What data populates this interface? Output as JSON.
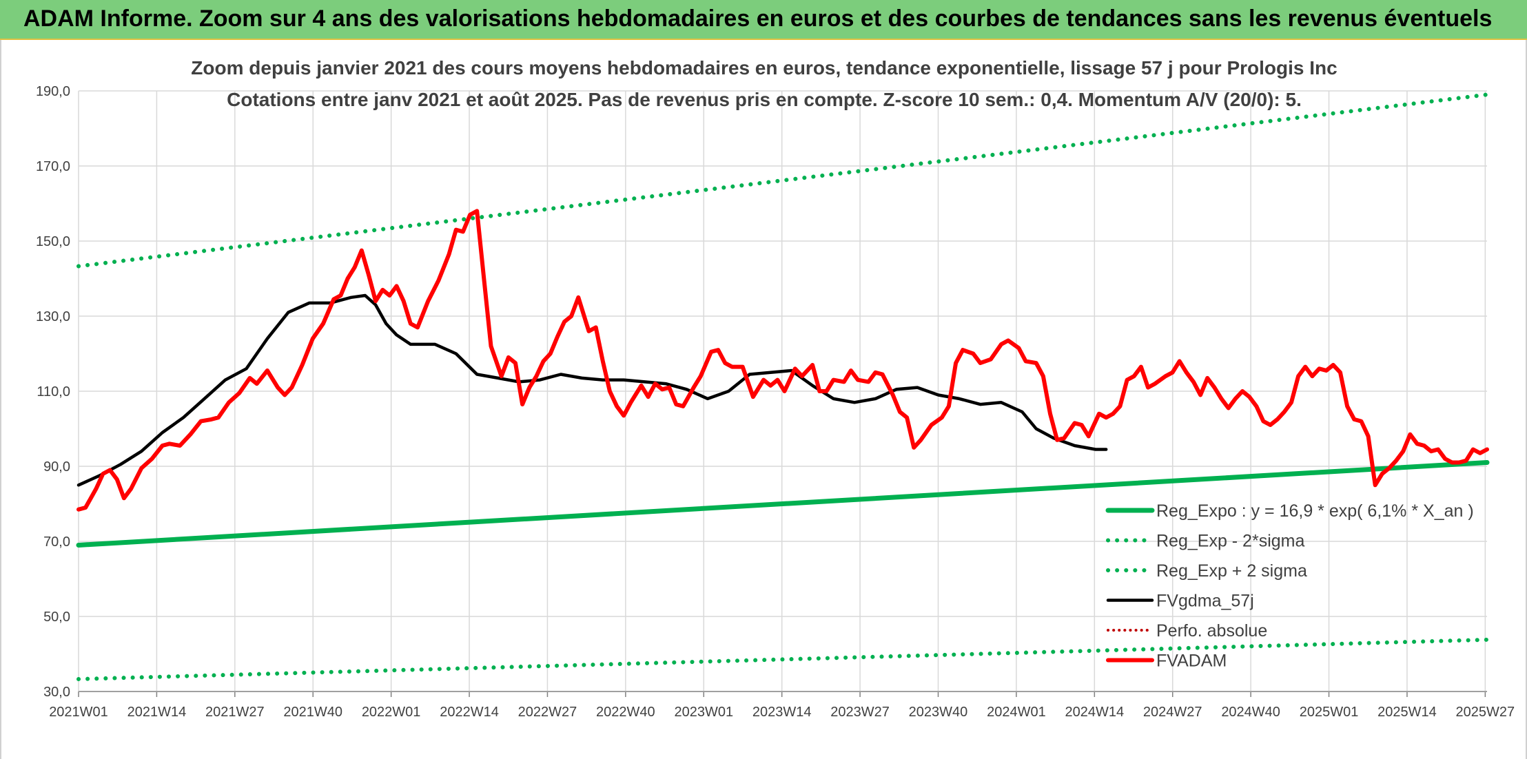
{
  "banner": {
    "title": "ADAM Informe. Zoom sur 4 ans des valorisations hebdomadaires en euros et des courbes de tendances sans les revenus éventuels"
  },
  "colors": {
    "trend": "#00b050",
    "fvgdma": "#000000",
    "fvadam": "#ff0000",
    "perfo": "#c00000",
    "grid": "#d9d9d9",
    "text": "#404040"
  },
  "chart_data": {
    "type": "line",
    "title": "Zoom depuis janvier 2021 des cours moyens hebdomadaires en euros, tendance exponentielle, lissage 57 j pour Prologis Inc",
    "subtitle": "Cotations entre janv 2021 et août 2025. Pas de revenus pris en compte. Z-score 10 sem.: 0,4. Momentum A/V (20/0): 5.",
    "xlabel": "",
    "ylabel": "",
    "ylim": [
      30,
      190
    ],
    "y_ticks": [
      "30,0",
      "50,0",
      "70,0",
      "90,0",
      "110,0",
      "130,0",
      "150,0",
      "170,0",
      "190,0"
    ],
    "x_ticks": [
      "2021W01",
      "2021W14",
      "2021W27",
      "2021W40",
      "2022W01",
      "2022W14",
      "2022W27",
      "2022W40",
      "2023W01",
      "2023W14",
      "2023W27",
      "2023W40",
      "2024W01",
      "2024W14",
      "2024W27",
      "2024W40",
      "2025W01",
      "2025W14",
      "2025W27"
    ],
    "week_range": [
      0,
      239
    ],
    "grid": true,
    "legend_position": "bottom-right",
    "series": [
      {
        "name": "Reg_Expo : y = 16,9 * exp( 6,1% *  X_an )",
        "style": "solid-thick",
        "color": "#00b050",
        "points": [
          [
            0,
            69.0
          ],
          [
            239,
            91.0
          ]
        ]
      },
      {
        "name": "Reg_Exp - 2*sigma",
        "style": "dotted",
        "color": "#00b050",
        "points": [
          [
            0,
            33.3
          ],
          [
            239,
            43.8
          ]
        ]
      },
      {
        "name": "Reg_Exp + 2 sigma",
        "style": "dotted",
        "color": "#00b050",
        "points": [
          [
            0,
            143.3
          ],
          [
            239,
            189.0
          ]
        ]
      },
      {
        "name": "FVgdma_57j",
        "style": "solid",
        "color": "#000000",
        "points": [
          [
            0,
            85.0
          ],
          [
            6,
            87.5
          ],
          [
            12,
            90.5
          ],
          [
            18,
            94.0
          ],
          [
            24,
            99.0
          ],
          [
            30,
            103.0
          ],
          [
            36,
            108.0
          ],
          [
            42,
            113.0
          ],
          [
            48,
            116.0
          ],
          [
            54,
            124.0
          ],
          [
            60,
            131.0
          ],
          [
            66,
            133.5
          ],
          [
            72,
            133.5
          ],
          [
            78,
            135.0
          ],
          [
            82,
            135.5
          ],
          [
            85,
            133.0
          ],
          [
            88,
            128.0
          ],
          [
            91,
            125.0
          ],
          [
            95,
            122.5
          ],
          [
            102,
            122.5
          ],
          [
            108,
            120.0
          ],
          [
            114,
            114.5
          ],
          [
            120,
            113.5
          ],
          [
            126,
            112.5
          ],
          [
            132,
            113.0
          ],
          [
            138,
            114.5
          ],
          [
            144,
            113.5
          ],
          [
            150,
            113.0
          ],
          [
            156,
            113.0
          ],
          [
            162,
            112.5
          ],
          [
            168,
            112.0
          ],
          [
            174,
            110.5
          ],
          [
            180,
            108.0
          ],
          [
            186,
            110.0
          ],
          [
            192,
            114.5
          ],
          [
            198,
            115.0
          ],
          [
            204,
            115.5
          ],
          [
            210,
            111.5
          ],
          [
            216,
            108.0
          ],
          [
            222,
            107.0
          ],
          [
            228,
            108.0
          ],
          [
            234,
            110.5
          ],
          [
            240,
            111.0
          ],
          [
            246,
            109.0
          ],
          [
            252,
            108.0
          ],
          [
            258,
            106.5
          ],
          [
            264,
            107.0
          ],
          [
            270,
            104.5
          ],
          [
            274,
            100.0
          ],
          [
            279,
            97.5
          ],
          [
            285,
            95.5
          ],
          [
            291,
            94.5
          ],
          [
            294,
            94.5
          ]
        ]
      },
      {
        "name": "Perfo. absolue",
        "style": "dotted-thin",
        "color": "#c00000",
        "points": []
      },
      {
        "name": "FVADAM",
        "style": "solid-thick",
        "color": "#ff0000",
        "points": [
          [
            0,
            78.5
          ],
          [
            2,
            79.0
          ],
          [
            5,
            84.0
          ],
          [
            7,
            88.0
          ],
          [
            9,
            89.0
          ],
          [
            11,
            86.5
          ],
          [
            13,
            81.5
          ],
          [
            15,
            84.0
          ],
          [
            18,
            89.5
          ],
          [
            21,
            92.0
          ],
          [
            24,
            95.5
          ],
          [
            26,
            96.0
          ],
          [
            29,
            95.5
          ],
          [
            32,
            98.5
          ],
          [
            35,
            102.0
          ],
          [
            38,
            102.5
          ],
          [
            40,
            103.0
          ],
          [
            43,
            107.0
          ],
          [
            46,
            109.5
          ],
          [
            49,
            113.5
          ],
          [
            51,
            112.0
          ],
          [
            54,
            115.5
          ],
          [
            57,
            111.0
          ],
          [
            59,
            109.0
          ],
          [
            61,
            111.0
          ],
          [
            64,
            117.0
          ],
          [
            67,
            124.0
          ],
          [
            70,
            128.0
          ],
          [
            73,
            134.5
          ],
          [
            75,
            135.5
          ],
          [
            77,
            140.0
          ],
          [
            79,
            143.0
          ],
          [
            81,
            147.5
          ],
          [
            83,
            141.0
          ],
          [
            85,
            134.0
          ],
          [
            87,
            137.0
          ],
          [
            89,
            135.5
          ],
          [
            91,
            138.0
          ],
          [
            93,
            134.0
          ],
          [
            95,
            128.0
          ],
          [
            97,
            127.0
          ],
          [
            100,
            134.0
          ],
          [
            103,
            139.5
          ],
          [
            106,
            146.5
          ],
          [
            108,
            153.0
          ],
          [
            110,
            152.5
          ],
          [
            112,
            157.0
          ],
          [
            114,
            158.0
          ],
          [
            116,
            140.0
          ],
          [
            118,
            122.0
          ],
          [
            121,
            114.0
          ],
          [
            123,
            119.0
          ],
          [
            125,
            117.5
          ],
          [
            127,
            106.5
          ],
          [
            129,
            111.0
          ],
          [
            131,
            114.0
          ],
          [
            133,
            118.0
          ],
          [
            135,
            120.0
          ],
          [
            137,
            124.5
          ],
          [
            139,
            128.5
          ],
          [
            141,
            130.0
          ],
          [
            143,
            135.0
          ],
          [
            146,
            126.0
          ],
          [
            148,
            127.0
          ],
          [
            150,
            118.0
          ],
          [
            152,
            110.0
          ],
          [
            154,
            106.0
          ],
          [
            156,
            103.5
          ],
          [
            158,
            107.0
          ],
          [
            161,
            111.5
          ],
          [
            163,
            108.5
          ],
          [
            165,
            112.0
          ],
          [
            167,
            110.5
          ],
          [
            169,
            111.0
          ],
          [
            171,
            106.5
          ],
          [
            173,
            106.0
          ],
          [
            176,
            111.0
          ],
          [
            178,
            114.0
          ],
          [
            181,
            120.5
          ],
          [
            183,
            121.0
          ],
          [
            185,
            117.5
          ],
          [
            187,
            116.5
          ],
          [
            190,
            116.5
          ],
          [
            193,
            108.5
          ],
          [
            196,
            113.0
          ],
          [
            198,
            111.5
          ],
          [
            200,
            113.0
          ],
          [
            202,
            110.0
          ],
          [
            205,
            116.0
          ],
          [
            207,
            114.0
          ],
          [
            210,
            117.0
          ],
          [
            212,
            110.0
          ],
          [
            214,
            110.0
          ],
          [
            216,
            113.0
          ],
          [
            219,
            112.5
          ],
          [
            221,
            115.5
          ],
          [
            223,
            113.0
          ],
          [
            226,
            112.5
          ],
          [
            228,
            115.0
          ],
          [
            230,
            114.5
          ],
          [
            233,
            109.0
          ],
          [
            235,
            104.5
          ],
          [
            237,
            103.0
          ],
          [
            239,
            95.0
          ],
          [
            241,
            97.0
          ],
          [
            244,
            101.0
          ],
          [
            247,
            103.0
          ],
          [
            249,
            106.0
          ],
          [
            251,
            117.5
          ],
          [
            253,
            121.0
          ],
          [
            256,
            120.0
          ],
          [
            258,
            117.5
          ],
          [
            261,
            118.5
          ],
          [
            264,
            122.5
          ],
          [
            266,
            123.5
          ],
          [
            269,
            121.5
          ],
          [
            271,
            118.0
          ],
          [
            274,
            117.5
          ],
          [
            276,
            114.0
          ],
          [
            278,
            104.0
          ],
          [
            280,
            97.0
          ],
          [
            282,
            97.5
          ],
          [
            285,
            101.5
          ],
          [
            287,
            101.0
          ],
          [
            289,
            98.0
          ],
          [
            292,
            104.0
          ],
          [
            294,
            103.0
          ],
          [
            296,
            104.0
          ],
          [
            298,
            106.0
          ],
          [
            300,
            113.0
          ],
          [
            302,
            114.0
          ],
          [
            304,
            116.5
          ],
          [
            306,
            111.0
          ],
          [
            308,
            112.0
          ],
          [
            311,
            114.0
          ],
          [
            313,
            115.0
          ],
          [
            315,
            118.0
          ],
          [
            317,
            115.0
          ],
          [
            319,
            112.5
          ],
          [
            321,
            109.0
          ],
          [
            323,
            113.5
          ],
          [
            325,
            111.0
          ],
          [
            327,
            108.0
          ],
          [
            329,
            105.5
          ],
          [
            331,
            108.0
          ],
          [
            333,
            110.0
          ],
          [
            335,
            108.5
          ],
          [
            337,
            106.0
          ],
          [
            339,
            102.0
          ],
          [
            341,
            101.0
          ],
          [
            343,
            102.5
          ],
          [
            345,
            104.5
          ],
          [
            347,
            107.0
          ],
          [
            349,
            114.0
          ],
          [
            351,
            116.5
          ],
          [
            353,
            114.0
          ],
          [
            355,
            116.0
          ],
          [
            357,
            115.5
          ],
          [
            359,
            117.0
          ],
          [
            361,
            115.0
          ],
          [
            363,
            106.0
          ],
          [
            365,
            102.5
          ],
          [
            367,
            102.0
          ],
          [
            369,
            98.0
          ],
          [
            371,
            85.0
          ],
          [
            373,
            88.0
          ],
          [
            375,
            89.5
          ],
          [
            377,
            91.5
          ],
          [
            379,
            94.0
          ],
          [
            381,
            98.5
          ],
          [
            383,
            96.0
          ],
          [
            385,
            95.5
          ],
          [
            387,
            94.0
          ],
          [
            389,
            94.5
          ],
          [
            391,
            92.0
          ],
          [
            393,
            91.0
          ],
          [
            395,
            91.0
          ],
          [
            397,
            91.5
          ],
          [
            399,
            94.5
          ],
          [
            401,
            93.5
          ],
          [
            403,
            94.5
          ]
        ]
      }
    ]
  }
}
